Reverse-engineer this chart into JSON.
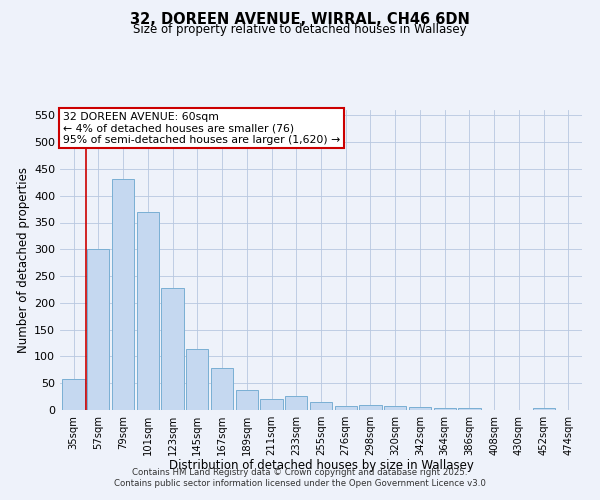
{
  "title": "32, DOREEN AVENUE, WIRRAL, CH46 6DN",
  "subtitle": "Size of property relative to detached houses in Wallasey",
  "xlabel": "Distribution of detached houses by size in Wallasey",
  "ylabel": "Number of detached properties",
  "categories": [
    "35sqm",
    "57sqm",
    "79sqm",
    "101sqm",
    "123sqm",
    "145sqm",
    "167sqm",
    "189sqm",
    "211sqm",
    "233sqm",
    "255sqm",
    "276sqm",
    "298sqm",
    "320sqm",
    "342sqm",
    "364sqm",
    "386sqm",
    "408sqm",
    "430sqm",
    "452sqm",
    "474sqm"
  ],
  "values": [
    57,
    300,
    432,
    370,
    228,
    113,
    78,
    37,
    20,
    26,
    15,
    7,
    9,
    8,
    6,
    4,
    4,
    0,
    0,
    4,
    0
  ],
  "bar_color": "#c5d8f0",
  "bar_edge_color": "#7aafd4",
  "red_line_index": 1,
  "annotation_title": "32 DOREEN AVENUE: 60sqm",
  "annotation_line1": "← 4% of detached houses are smaller (76)",
  "annotation_line2": "95% of semi-detached houses are larger (1,620) →",
  "annotation_box_color": "#ffffff",
  "annotation_box_edge": "#cc0000",
  "red_line_color": "#cc0000",
  "ylim": [
    0,
    560
  ],
  "yticks": [
    0,
    50,
    100,
    150,
    200,
    250,
    300,
    350,
    400,
    450,
    500,
    550
  ],
  "background_color": "#eef2fa",
  "grid_color": "#b8c8e0",
  "footer_line1": "Contains HM Land Registry data © Crown copyright and database right 2025.",
  "footer_line2": "Contains public sector information licensed under the Open Government Licence v3.0"
}
